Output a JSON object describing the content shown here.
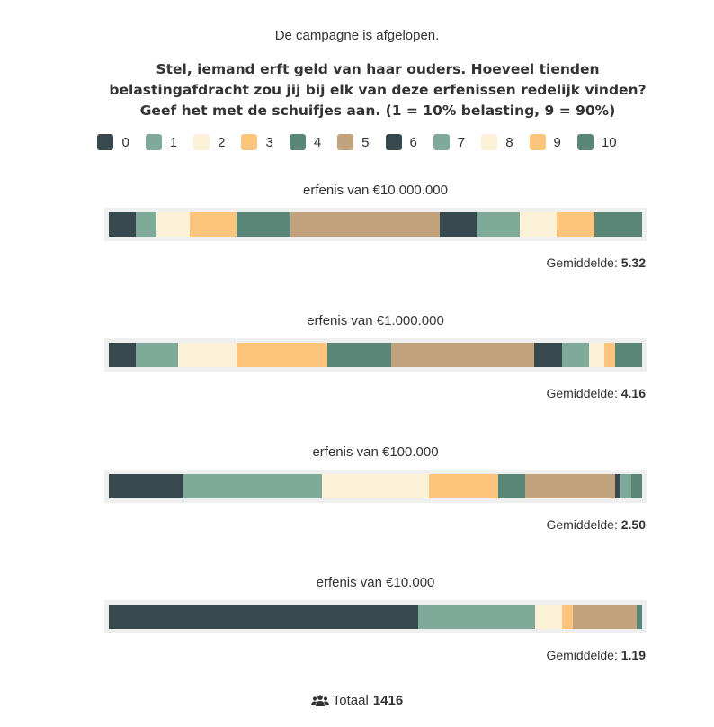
{
  "status_text": "De campagne is afgelopen.",
  "question": "Stel, iemand erft geld van haar ouders. Hoeveel tienden belastingafdracht zou jij bij elk van deze erfenissen redelijk vinden? Geef het met de schuifjes aan. (1 = 10% belasting, 9 = 90%)",
  "average_label": "Gemiddelde:",
  "footer": {
    "icon": "users-icon",
    "label": "Totaal",
    "value": "1416"
  },
  "chart_data": {
    "type": "bar",
    "orientation": "horizontal-stacked-100%",
    "title": "Stel, iemand erft geld van haar ouders. Hoeveel tienden belastingafdracht zou jij bij elk van deze erfenissen redelijk vinden? Geef het met de schuifjes aan. (1 = 10% belasting, 9 = 90%)",
    "legend_position": "top",
    "categories_legend": [
      "0",
      "1",
      "2",
      "3",
      "4",
      "5",
      "6",
      "7",
      "8",
      "9",
      "10"
    ],
    "colors": [
      "#37494f",
      "#7fa999",
      "#faf1d7",
      "#fdc57b",
      "#5a8677",
      "#c2a27d",
      "#37494f",
      "#7fa999",
      "#faf1d7",
      "#fdc57b",
      "#5a8677"
    ],
    "unit": "percent",
    "series": [
      {
        "name": "erfenis van €10.000.000",
        "values": [
          5.1,
          3.9,
          6.1,
          8.9,
          10.1,
          28.0,
          6.9,
          8.1,
          6.9,
          7.1,
          8.9
        ],
        "average": "5.32"
      },
      {
        "name": "erfenis van €1.000.000",
        "values": [
          5.1,
          7.9,
          11.0,
          17.0,
          12.0,
          27.0,
          5.1,
          5.1,
          2.9,
          2.0,
          5.1
        ],
        "average": "4.16"
      },
      {
        "name": "erfenis van €100.000",
        "values": [
          14.0,
          26.0,
          20.1,
          13.0,
          5.1,
          16.9,
          1.0,
          2.0,
          0,
          0,
          2.0
        ],
        "average": "2.50"
      },
      {
        "name": "erfenis van €10.000",
        "values": [
          58.0,
          21.9,
          5.1,
          2.0,
          0,
          12.0,
          0,
          0,
          0,
          0,
          1.0
        ],
        "average": "1.19"
      }
    ],
    "total_respondents": 1416
  }
}
